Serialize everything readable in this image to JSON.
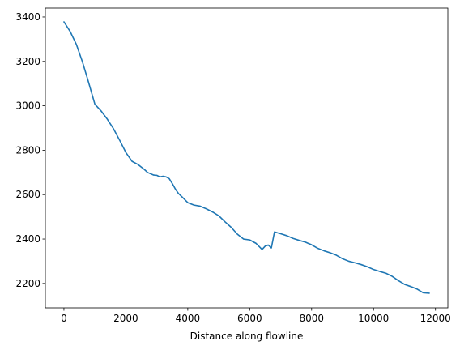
{
  "chart_data": {
    "type": "line",
    "title": "",
    "xlabel": "Distance along flowline",
    "ylabel": "",
    "xlim": [
      -600,
      12400
    ],
    "ylim": [
      2090,
      3440
    ],
    "xticks": [
      0,
      2000,
      4000,
      6000,
      8000,
      10000,
      12000
    ],
    "yticks": [
      2200,
      2400,
      2600,
      2800,
      3000,
      3200,
      3400
    ],
    "grid": false,
    "legend": "none",
    "series": [
      {
        "color": "#1f77b4",
        "x": [
          0,
          200,
          400,
          600,
          800,
          1000,
          1200,
          1400,
          1600,
          1800,
          2000,
          2200,
          2400,
          2600,
          2700,
          2900,
          3000,
          3100,
          3200,
          3300,
          3400,
          3500,
          3600,
          3700,
          3800,
          4000,
          4200,
          4400,
          4600,
          4800,
          5000,
          5200,
          5400,
          5600,
          5800,
          6000,
          6200,
          6400,
          6500,
          6600,
          6700,
          6800,
          7000,
          7200,
          7400,
          7600,
          7800,
          8000,
          8200,
          8400,
          8600,
          8800,
          9000,
          9200,
          9400,
          9600,
          9800,
          10000,
          10200,
          10400,
          10600,
          10800,
          11000,
          11200,
          11400,
          11600,
          11800
        ],
        "y": [
          3378,
          3335,
          3277,
          3197,
          3104,
          3007,
          2977,
          2940,
          2897,
          2845,
          2790,
          2750,
          2735,
          2713,
          2700,
          2688,
          2687,
          2680,
          2683,
          2680,
          2672,
          2650,
          2625,
          2605,
          2592,
          2564,
          2553,
          2548,
          2536,
          2522,
          2505,
          2478,
          2453,
          2422,
          2400,
          2396,
          2381,
          2353,
          2368,
          2373,
          2360,
          2432,
          2424,
          2415,
          2403,
          2394,
          2386,
          2374,
          2358,
          2347,
          2338,
          2327,
          2311,
          2300,
          2293,
          2285,
          2275,
          2263,
          2254,
          2246,
          2232,
          2213,
          2196,
          2186,
          2175,
          2158,
          2156
        ]
      }
    ]
  }
}
